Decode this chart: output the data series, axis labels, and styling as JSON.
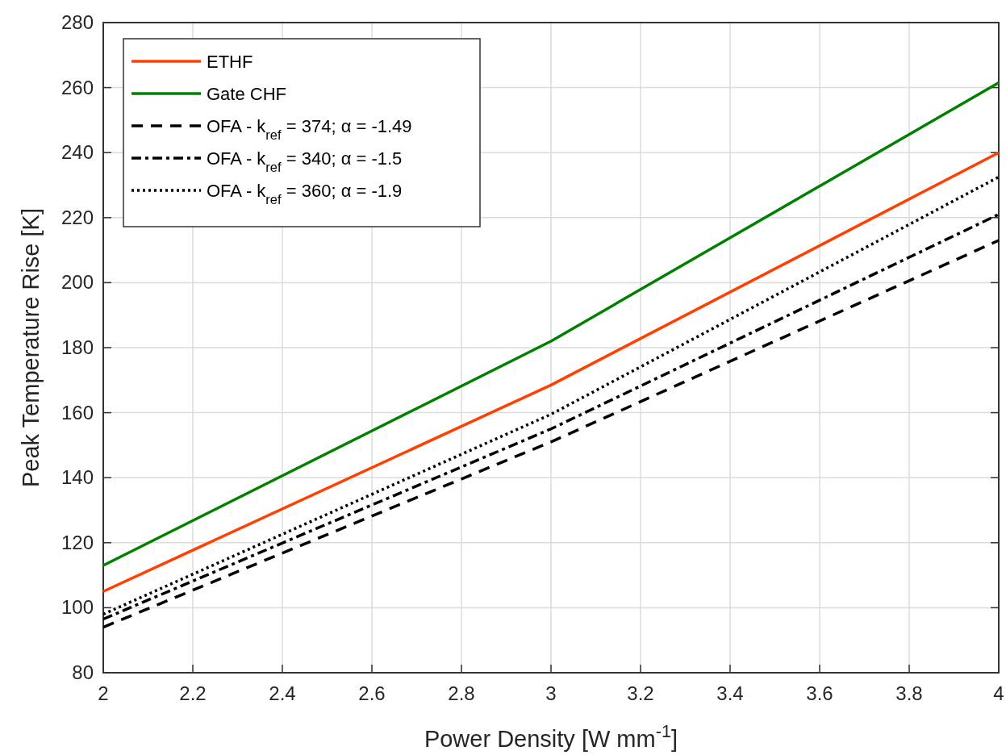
{
  "chart_data": {
    "type": "line",
    "xlabel": "Power Density [W mm$^{-1}$]",
    "ylabel": "Peak Temperature Rise [K]",
    "xlim": [
      2,
      4
    ],
    "ylim": [
      80,
      280
    ],
    "xticks": [
      2,
      2.2,
      2.4,
      2.6,
      2.8,
      3,
      3.2,
      3.4,
      3.6,
      3.8,
      4
    ],
    "yticks": [
      80,
      100,
      120,
      140,
      160,
      180,
      200,
      220,
      240,
      260,
      280
    ],
    "grid": true,
    "legend": "top left",
    "x": [
      2,
      3,
      4
    ],
    "series": [
      {
        "name": "ETHF",
        "color": "#ff4000",
        "values": [
          105,
          168.5,
          240
        ],
        "line_style": "solid"
      },
      {
        "name": "Gate CHF",
        "color": "#008000",
        "values": [
          113,
          182,
          261.5
        ],
        "line_style": "solid"
      },
      {
        "name": "OFA - k$_{ref}$ = 374; α = -1.49",
        "color": "#000000",
        "values": [
          94,
          151,
          213
        ],
        "line_style": "dashed"
      },
      {
        "name": "OFA - k$_{ref}$ = 340; α = -1.5",
        "color": "#000000",
        "values": [
          96.5,
          155,
          221
        ],
        "line_style": "dashdot"
      },
      {
        "name": "OFA - k$_{ref}$ = 360; α = -1.9",
        "color": "#000000",
        "values": [
          98,
          159.5,
          232.5
        ],
        "line_style": "dotted"
      }
    ]
  }
}
